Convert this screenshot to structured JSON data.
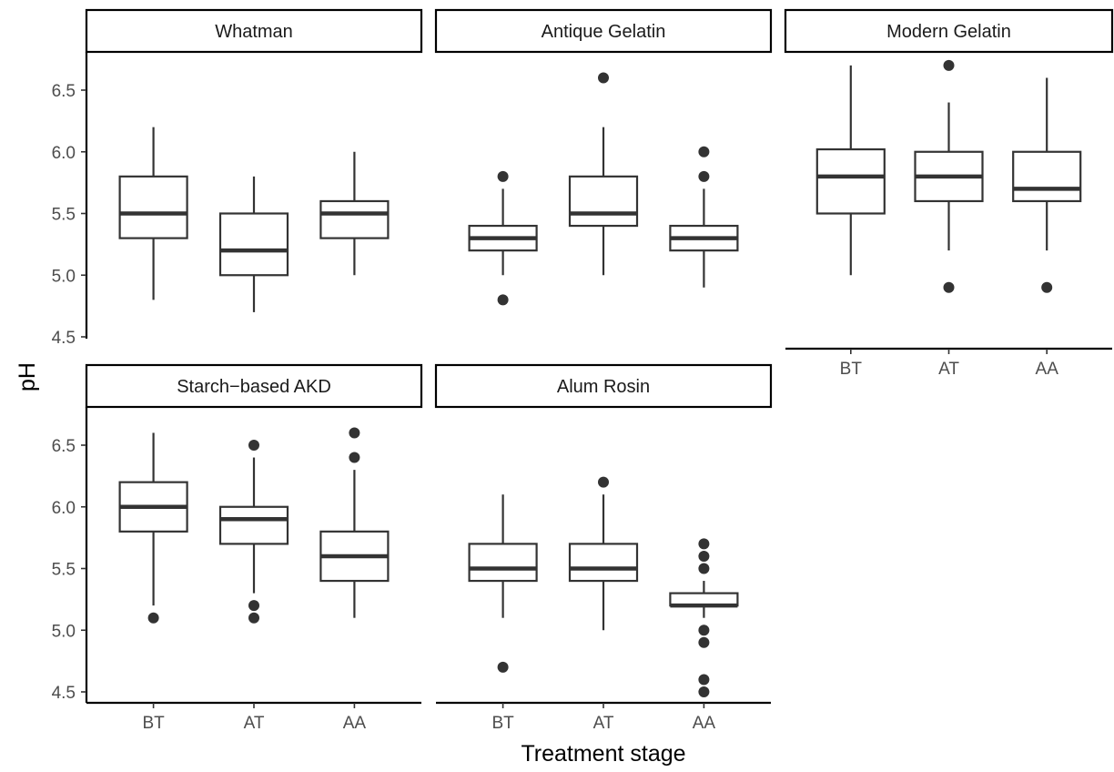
{
  "chart_data": {
    "type": "box",
    "xlabel": "Treatment stage",
    "ylabel": "pH",
    "categories": [
      "BT",
      "AT",
      "AA"
    ],
    "y_ticks": [
      4.5,
      5.0,
      5.5,
      6.0,
      6.5
    ],
    "y_tick_labels": [
      "4.5",
      "5.0",
      "5.5",
      "6.0",
      "6.5"
    ],
    "ylim": [
      4.45,
      6.8
    ],
    "grid": false,
    "facets": [
      {
        "title": "Whatman",
        "boxes": [
          {
            "category": "BT",
            "min": 4.8,
            "q1": 5.3,
            "median": 5.5,
            "q3": 5.8,
            "max": 6.2,
            "outliers": []
          },
          {
            "category": "AT",
            "min": 4.7,
            "q1": 5.0,
            "median": 5.2,
            "q3": 5.5,
            "max": 5.8,
            "outliers": []
          },
          {
            "category": "AA",
            "min": 5.0,
            "q1": 5.3,
            "median": 5.5,
            "q3": 5.6,
            "max": 6.0,
            "outliers": []
          }
        ]
      },
      {
        "title": "Antique Gelatin",
        "boxes": [
          {
            "category": "BT",
            "min": 5.0,
            "q1": 5.2,
            "median": 5.3,
            "q3": 5.4,
            "max": 5.7,
            "outliers": [
              5.8,
              4.8
            ]
          },
          {
            "category": "AT",
            "min": 5.0,
            "q1": 5.4,
            "median": 5.5,
            "q3": 5.8,
            "max": 6.2,
            "outliers": [
              6.6
            ]
          },
          {
            "category": "AA",
            "min": 4.9,
            "q1": 5.2,
            "median": 5.3,
            "q3": 5.4,
            "max": 5.7,
            "outliers": [
              6.0,
              5.8
            ]
          }
        ]
      },
      {
        "title": "Modern Gelatin",
        "boxes": [
          {
            "category": "BT",
            "min": 5.0,
            "q1": 5.5,
            "median": 5.8,
            "q3": 6.02,
            "max": 6.7,
            "outliers": []
          },
          {
            "category": "AT",
            "min": 5.2,
            "q1": 5.6,
            "median": 5.8,
            "q3": 6.0,
            "max": 6.4,
            "outliers": [
              6.7,
              4.9
            ]
          },
          {
            "category": "AA",
            "min": 5.2,
            "q1": 5.6,
            "median": 5.7,
            "q3": 6.0,
            "max": 6.6,
            "outliers": [
              4.9
            ]
          }
        ]
      },
      {
        "title": "Starch−based AKD",
        "boxes": [
          {
            "category": "BT",
            "min": 5.2,
            "q1": 5.8,
            "median": 6.0,
            "q3": 6.2,
            "max": 6.6,
            "outliers": [
              5.1
            ]
          },
          {
            "category": "AT",
            "min": 5.3,
            "q1": 5.7,
            "median": 5.9,
            "q3": 6.0,
            "max": 6.4,
            "outliers": [
              6.5,
              5.2,
              5.1
            ]
          },
          {
            "category": "AA",
            "min": 5.1,
            "q1": 5.4,
            "median": 5.6,
            "q3": 5.8,
            "max": 6.3,
            "outliers": [
              6.6,
              6.4
            ]
          }
        ]
      },
      {
        "title": "Alum Rosin",
        "boxes": [
          {
            "category": "BT",
            "min": 5.1,
            "q1": 5.4,
            "median": 5.5,
            "q3": 5.7,
            "max": 6.1,
            "outliers": [
              4.7
            ]
          },
          {
            "category": "AT",
            "min": 5.0,
            "q1": 5.4,
            "median": 5.5,
            "q3": 5.7,
            "max": 6.1,
            "outliers": [
              6.2
            ]
          },
          {
            "category": "AA",
            "min": 5.1,
            "q1": 5.2,
            "median": 5.2,
            "q3": 5.3,
            "max": 5.4,
            "outliers": [
              5.7,
              5.6,
              5.5,
              5.0,
              4.9,
              4.6,
              4.5
            ]
          }
        ]
      }
    ]
  }
}
